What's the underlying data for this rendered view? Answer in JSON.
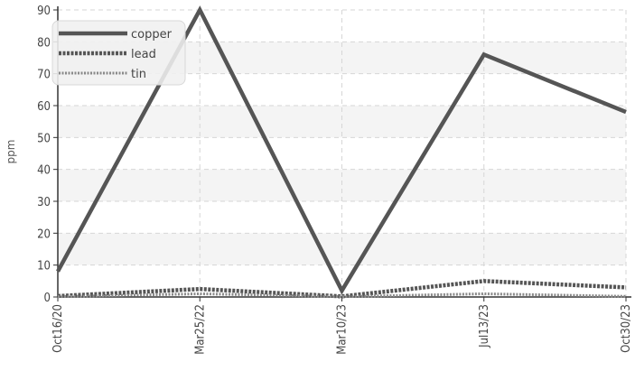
{
  "chart_data": {
    "type": "line",
    "title": "",
    "xlabel": "",
    "ylabel": "ppm",
    "categories": [
      "Oct16/20",
      "Mar25/22",
      "Mar10/23",
      "Jul13/23",
      "Oct30/23"
    ],
    "series": [
      {
        "name": "copper",
        "values": [
          8,
          90,
          2,
          76,
          58
        ]
      },
      {
        "name": "lead",
        "values": [
          0.3,
          2.5,
          0.2,
          5,
          3
        ]
      },
      {
        "name": "tin",
        "values": [
          0.1,
          1.0,
          0.1,
          1.0,
          0.2
        ]
      }
    ],
    "ylim": [
      0,
      90
    ],
    "yticks": [
      0,
      10,
      20,
      30,
      40,
      50,
      60,
      70,
      80,
      90
    ],
    "grid": true,
    "legend_position": "top-left",
    "colors": {
      "series": [
        "#555555",
        "#555555",
        "#8a8a8a"
      ],
      "band": "#f4f4f4",
      "grid": "#d6d6d6",
      "axis": "#333333"
    }
  }
}
